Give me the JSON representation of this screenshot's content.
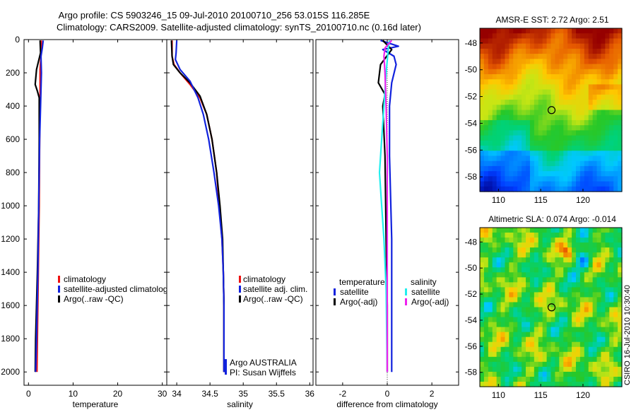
{
  "title": {
    "line1": "Argo profile: CS 5903246_15 09-Jul-2010 20100710_256 53.015S 116.285E",
    "line2": "Climatology: CARS2009. Satellite-adjusted climatology: synTS_20100710.nc (0.16d later)"
  },
  "side_label": "CSIRO 16-Jul-2010 10:30:40",
  "colors": {
    "red": "#ee1111",
    "blue": "#1122dd",
    "black": "#000000",
    "cyan": "#22eeee",
    "magenta": "#ee22ee"
  },
  "chart_data": [
    {
      "id": "temperature",
      "type": "line",
      "xlabel": "temperature",
      "xlim": [
        -1,
        31
      ],
      "ylim": [
        2080,
        0
      ],
      "xticks": [
        0,
        10,
        20,
        30
      ],
      "yticks": [
        0,
        200,
        400,
        600,
        800,
        1000,
        1200,
        1400,
        1600,
        1800,
        2000
      ],
      "legend": [
        "climatology",
        "satellite-adjusted climatology",
        "Argo(..raw -QC)"
      ],
      "series": [
        {
          "name": "climatology",
          "color": "red",
          "points": [
            [
              2.9,
              5
            ],
            [
              2.8,
              100
            ],
            [
              2.6,
              180
            ],
            [
              2.6,
              250
            ],
            [
              2.6,
              400
            ],
            [
              2.5,
              600
            ],
            [
              2.4,
              1000
            ],
            [
              2.2,
              1400
            ],
            [
              2.0,
              1800
            ],
            [
              1.9,
              2000
            ]
          ]
        },
        {
          "name": "Argo(..raw -QC)",
          "color": "black",
          "points": [
            [
              2.6,
              5
            ],
            [
              2.7,
              80
            ],
            [
              1.8,
              180
            ],
            [
              1.5,
              270
            ],
            [
              2.0,
              310
            ],
            [
              2.4,
              350
            ],
            [
              2.4,
              600
            ],
            [
              2.3,
              1000
            ],
            [
              2.0,
              1400
            ],
            [
              1.6,
              1800
            ],
            [
              1.5,
              2000
            ]
          ]
        },
        {
          "name": "satellite-adjusted climatology",
          "color": "blue",
          "points": [
            [
              3.3,
              5
            ],
            [
              3.1,
              50
            ],
            [
              2.8,
              100
            ],
            [
              2.9,
              200
            ],
            [
              2.7,
              400
            ],
            [
              2.5,
              600
            ],
            [
              2.3,
              1000
            ],
            [
              2.1,
              1400
            ],
            [
              1.8,
              1800
            ],
            [
              1.6,
              2000
            ]
          ]
        }
      ]
    },
    {
      "id": "salinity",
      "type": "line",
      "xlabel": "salinity",
      "xlim": [
        33.85,
        36.05
      ],
      "ylim": [
        2080,
        0
      ],
      "xticks": [
        34,
        34.5,
        35,
        35.5,
        36
      ],
      "legend": [
        "climatology",
        "satellite adj. clim.",
        "Argo(..raw -QC)"
      ],
      "annotation": [
        "Argo AUSTRALIA",
        "PI: Susan Wijffels"
      ],
      "series": [
        {
          "name": "climatology",
          "color": "red",
          "points": [
            [
              33.93,
              5
            ],
            [
              33.93,
              100
            ],
            [
              33.96,
              150
            ],
            [
              34.05,
              200
            ],
            [
              34.2,
              270
            ],
            [
              34.35,
              350
            ],
            [
              34.45,
              450
            ],
            [
              34.53,
              600
            ],
            [
              34.6,
              800
            ],
            [
              34.64,
              1000
            ],
            [
              34.68,
              1200
            ],
            [
              34.7,
              1400
            ],
            [
              34.71,
              1600
            ],
            [
              34.71,
              2000
            ]
          ]
        },
        {
          "name": "Argo(..raw -QC)",
          "color": "black",
          "points": [
            [
              33.92,
              5
            ],
            [
              33.93,
              100
            ],
            [
              33.95,
              150
            ],
            [
              34.05,
              200
            ],
            [
              34.2,
              260
            ],
            [
              34.35,
              340
            ],
            [
              34.45,
              450
            ],
            [
              34.53,
              600
            ],
            [
              34.6,
              800
            ],
            [
              34.65,
              1000
            ],
            [
              34.69,
              1200
            ],
            [
              34.7,
              1400
            ],
            [
              34.71,
              1600
            ],
            [
              34.71,
              2000
            ]
          ]
        },
        {
          "name": "satellite adj. clim.",
          "color": "blue",
          "points": [
            [
              34.0,
              5
            ],
            [
              33.99,
              80
            ],
            [
              33.98,
              120
            ],
            [
              34.05,
              180
            ],
            [
              34.2,
              250
            ],
            [
              34.32,
              350
            ],
            [
              34.4,
              450
            ],
            [
              34.48,
              600
            ],
            [
              34.56,
              800
            ],
            [
              34.63,
              1000
            ],
            [
              34.68,
              1200
            ],
            [
              34.7,
              1400
            ],
            [
              34.71,
              1600
            ],
            [
              34.71,
              2000
            ]
          ]
        }
      ]
    },
    {
      "id": "difference",
      "type": "line",
      "xlabel": "difference from climatology",
      "xlim": [
        -3.2,
        3.2
      ],
      "ylim": [
        2080,
        0
      ],
      "xticks": [
        -2,
        0,
        2
      ],
      "legend_groups": [
        {
          "heading": "temperature",
          "items": [
            "satellite",
            "Argo(-adj)"
          ]
        },
        {
          "heading": "salinity",
          "items": [
            "satellite",
            "Argo(-adj)"
          ]
        }
      ],
      "series": [
        {
          "name": "temperature satellite",
          "color": "blue",
          "points": [
            [
              -0.3,
              5
            ],
            [
              0.5,
              40
            ],
            [
              -0.2,
              60
            ],
            [
              0.3,
              100
            ],
            [
              0.4,
              150
            ],
            [
              0.2,
              260
            ],
            [
              0.1,
              400
            ],
            [
              0.1,
              700
            ],
            [
              0.2,
              1200
            ],
            [
              0.2,
              1600
            ],
            [
              0.2,
              2000
            ]
          ]
        },
        {
          "name": "temperature Argo(-adj)",
          "color": "black",
          "points": [
            [
              -0.2,
              5
            ],
            [
              0.2,
              60
            ],
            [
              -0.3,
              150
            ],
            [
              -0.4,
              260
            ],
            [
              -0.1,
              330
            ],
            [
              -0.2,
              400
            ],
            [
              -0.1,
              700
            ],
            [
              -0.05,
              1200
            ],
            [
              0.0,
              1600
            ],
            [
              0.0,
              2000
            ]
          ]
        },
        {
          "name": "salinity satellite",
          "color": "cyan",
          "points": [
            [
              0.1,
              5
            ],
            [
              0.05,
              50
            ],
            [
              -0.05,
              200
            ],
            [
              -0.15,
              400
            ],
            [
              -0.25,
              600
            ],
            [
              -0.35,
              800
            ],
            [
              -0.25,
              1000
            ],
            [
              -0.15,
              1200
            ],
            [
              -0.05,
              1500
            ],
            [
              0.0,
              2000
            ]
          ]
        },
        {
          "name": "salinity Argo(-adj)",
          "color": "magenta",
          "points": [
            [
              0.2,
              5
            ],
            [
              -0.1,
              50
            ],
            [
              -0.15,
              100
            ],
            [
              -0.1,
              200
            ],
            [
              -0.05,
              400
            ],
            [
              0.0,
              700
            ],
            [
              0.0,
              1200
            ],
            [
              0.0,
              2000
            ]
          ]
        }
      ]
    },
    {
      "id": "sst_map",
      "type": "heatmap",
      "title": "AMSR-E SST: 2.72 Argo: 2.51",
      "xlim": [
        107.8,
        124.6
      ],
      "ylim": [
        -59.1,
        -46.9
      ],
      "xticks": [
        110,
        115,
        120
      ],
      "yticks": [
        -48,
        -50,
        -52,
        -54,
        -56,
        -58
      ],
      "marker": [
        116.285,
        -53.015
      ]
    },
    {
      "id": "sla_map",
      "type": "heatmap",
      "title": "Altimetric SLA: 0.074 Argo: -0.014",
      "xlim": [
        107.8,
        124.6
      ],
      "ylim": [
        -59.1,
        -46.9
      ],
      "xticks": [
        110,
        115,
        120
      ],
      "yticks": [
        -48,
        -50,
        -52,
        -54,
        -56,
        -58
      ],
      "marker": [
        116.285,
        -53.015
      ]
    }
  ]
}
